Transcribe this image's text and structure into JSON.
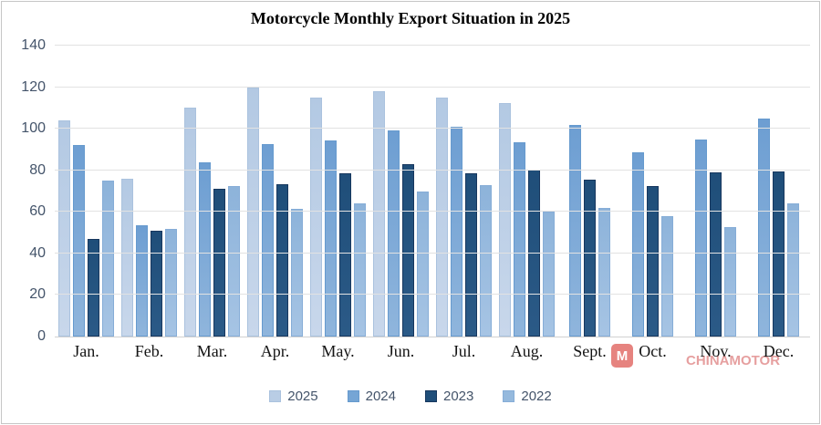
{
  "title": "Motorcycle Monthly Export Situation in 2025",
  "watermark": {
    "logo_letter": "M",
    "text": "CHINAMOTOR",
    "accent_color": "#e06863"
  },
  "colors": {
    "y2025": "#b9cde5",
    "y2024": "#75a5d5",
    "y2023": "#1f4e79",
    "y2022": "#95b9dd"
  },
  "chart_data": {
    "type": "bar",
    "title": "Motorcycle Monthly Export Situation in 2025",
    "categories": [
      "Jan.",
      "Feb.",
      "Mar.",
      "Apr.",
      "May.",
      "Jun.",
      "Jul.",
      "Aug.",
      "Sept.",
      "Oct.",
      "Nov.",
      "Dec."
    ],
    "series": [
      {
        "name": "2025",
        "color": "#b9cde5",
        "values": [
          104,
          76,
          110,
          120,
          115,
          118,
          115,
          112.5,
          null,
          null,
          null,
          null
        ]
      },
      {
        "name": "2024",
        "color": "#75a5d5",
        "values": [
          92,
          53.5,
          84,
          92.5,
          94.5,
          99,
          101,
          93.5,
          102,
          88.5,
          95,
          105
        ]
      },
      {
        "name": "2023",
        "color": "#1f4e79",
        "values": [
          47,
          51,
          71,
          73.5,
          78.5,
          83,
          78.5,
          80.5,
          75.5,
          72.5,
          79,
          79.5
        ]
      },
      {
        "name": "2022",
        "color": "#95b9dd",
        "values": [
          75,
          52,
          72.5,
          61.5,
          64,
          70,
          73,
          60,
          62,
          58,
          52.5,
          64
        ]
      }
    ],
    "xlabel": "",
    "ylabel": "",
    "ylim": [
      0,
      140
    ],
    "yticks": [
      0,
      20,
      40,
      60,
      80,
      100,
      120,
      140
    ],
    "grid": true,
    "legend_position": "bottom",
    "legend_entries": [
      "2025",
      "2024",
      "2023",
      "2022"
    ]
  }
}
